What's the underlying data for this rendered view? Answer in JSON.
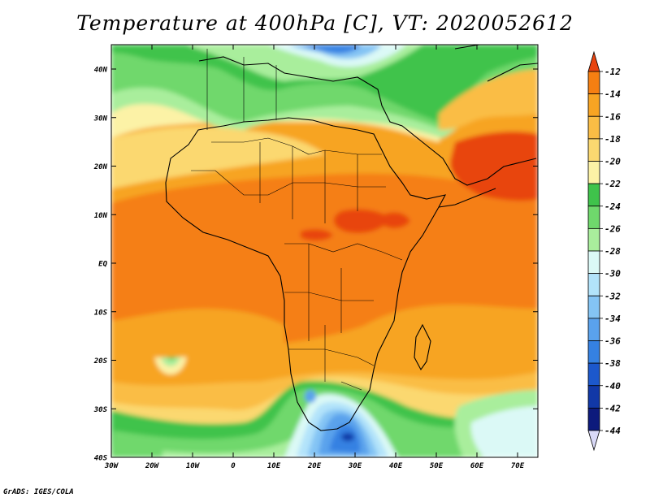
{
  "title": "Temperature at 400hPa [C], VT: 2020052612",
  "credit": "GrADS: IGES/COLA",
  "map": {
    "lat_labels": [
      "40N",
      "30N",
      "20N",
      "10N",
      "EQ",
      "10S",
      "20S",
      "30S",
      "40S"
    ],
    "lon_labels": [
      "30W",
      "20W",
      "10W",
      "0",
      "10E",
      "20E",
      "30E",
      "40E",
      "50E",
      "60E",
      "70E"
    ]
  },
  "colorbar": {
    "levels": [
      "-12",
      "-14",
      "-16",
      "-18",
      "-20",
      "-22",
      "-24",
      "-26",
      "-28",
      "-30",
      "-32",
      "-34",
      "-36",
      "-38",
      "-40",
      "-42",
      "-44"
    ],
    "colors": [
      "#e84410",
      "#f57f12",
      "#f7a423",
      "#fabd45",
      "#fbd870",
      "#fcf2a6",
      "#3fc34b",
      "#6fd86c",
      "#a9ee9c",
      "#dbf9f6",
      "#b2e3fa",
      "#84c4f4",
      "#5aa2ec",
      "#3581e2",
      "#1c58cc",
      "#1138a7",
      "#0d1a7c",
      "#d9d9f7"
    ]
  }
}
